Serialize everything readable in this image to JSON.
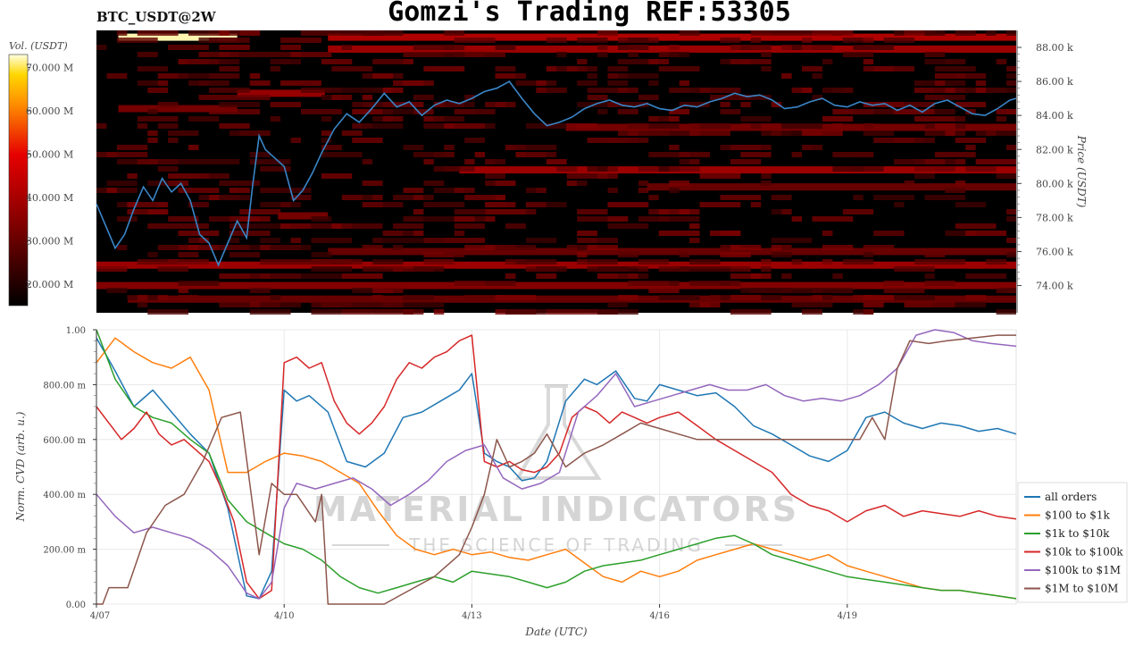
{
  "header": {
    "symbol": "BTC_USDT@2W",
    "title": "Gomzi's Trading REF:53305"
  },
  "watermark": {
    "line1": "MATERIAL INDICATORS",
    "line2": "THE SCIENCE OF TRADING"
  },
  "colors": {
    "heatmap_bg": "#000000",
    "price_line": "#3a86c8",
    "all_orders": "#1f77b4",
    "usd100_1k": "#ff7f0e",
    "usd1k_10k": "#2ca02c",
    "usd10k_100k": "#d62728",
    "usd100k_1m": "#9467bd",
    "usd1m_10m": "#8c564b"
  },
  "chart_data": [
    {
      "type": "heatmap",
      "title": "BTC_USDT@2W",
      "colorbar_label": "Vol. (USDT)",
      "colorbar_ticks": [
        "20.000 M",
        "30.000 M",
        "40.000 M",
        "50.000 M",
        "60.000 M",
        "70.000 M"
      ],
      "colorbar_range": [
        15,
        73
      ],
      "ylabel": "Price (USDT)",
      "ytick_labels": [
        "74.00 k",
        "76.00 k",
        "78.00 k",
        "80.00 k",
        "82.00 k",
        "84.00 k",
        "86.00 k",
        "88.00 k"
      ],
      "ylim": [
        72.4,
        89.0
      ],
      "xlim_days": [
        0,
        14.7
      ],
      "price_series": {
        "name": "Price",
        "x": [
          0,
          0.15,
          0.3,
          0.45,
          0.6,
          0.75,
          0.9,
          1.05,
          1.2,
          1.35,
          1.5,
          1.65,
          1.8,
          1.95,
          2.1,
          2.25,
          2.4,
          2.5,
          2.6,
          2.7,
          2.85,
          3.0,
          3.15,
          3.3,
          3.45,
          3.6,
          3.8,
          4.0,
          4.2,
          4.4,
          4.6,
          4.8,
          5.0,
          5.2,
          5.4,
          5.6,
          5.8,
          6.0,
          6.2,
          6.4,
          6.6,
          6.8,
          7.0,
          7.2,
          7.4,
          7.6,
          7.8,
          8.0,
          8.2,
          8.4,
          8.6,
          8.8,
          9.0,
          9.2,
          9.4,
          9.6,
          9.8,
          10.0,
          10.2,
          10.4,
          10.6,
          10.8,
          11.0,
          11.2,
          11.4,
          11.6,
          11.8,
          12.0,
          12.2,
          12.4,
          12.6,
          12.8,
          13.0,
          13.2,
          13.4,
          13.6,
          13.8,
          14.0,
          14.2,
          14.4,
          14.6,
          14.7
        ],
        "y": [
          78.8,
          77.5,
          76.2,
          77.0,
          78.5,
          79.8,
          79.0,
          80.3,
          79.5,
          80.0,
          79.0,
          77.0,
          76.5,
          75.2,
          76.5,
          77.8,
          76.8,
          80.0,
          82.8,
          82.0,
          81.5,
          81.0,
          79.0,
          79.6,
          80.6,
          81.8,
          83.2,
          84.1,
          83.6,
          84.4,
          85.3,
          84.5,
          84.8,
          84.0,
          84.6,
          84.9,
          84.7,
          85.0,
          85.4,
          85.6,
          86.0,
          85.0,
          84.1,
          83.4,
          83.6,
          83.9,
          84.4,
          84.7,
          84.9,
          84.6,
          84.5,
          84.7,
          84.4,
          84.3,
          84.6,
          84.5,
          84.8,
          85.0,
          85.3,
          85.1,
          85.2,
          84.9,
          84.4,
          84.5,
          84.8,
          85.0,
          84.6,
          84.5,
          84.8,
          84.6,
          84.7,
          84.3,
          84.6,
          84.2,
          84.7,
          84.9,
          84.5,
          84.1,
          84.0,
          84.4,
          84.9,
          85.0
        ]
      },
      "volume_bands": [
        {
          "price": 88.6,
          "x0": 0.35,
          "x1": 2.25,
          "vol": 72
        },
        {
          "price": 88.6,
          "x0": 3.7,
          "x1": 14.7,
          "vol": 41
        },
        {
          "price": 87.9,
          "x0": 3.7,
          "x1": 14.7,
          "vol": 38
        },
        {
          "price": 85.3,
          "x0": 2.25,
          "x1": 3.65,
          "vol": 37
        },
        {
          "price": 84.4,
          "x0": 0.35,
          "x1": 2.25,
          "vol": 32
        },
        {
          "price": 83.3,
          "x0": 7.5,
          "x1": 14.7,
          "vol": 32
        },
        {
          "price": 80.8,
          "x0": 5.8,
          "x1": 14.7,
          "vol": 38
        },
        {
          "price": 79.8,
          "x0": 8.8,
          "x1": 14.7,
          "vol": 30
        },
        {
          "price": 78.1,
          "x0": 2.9,
          "x1": 3.7,
          "vol": 32
        },
        {
          "price": 76.0,
          "x0": 3.7,
          "x1": 14.7,
          "vol": 30
        },
        {
          "price": 75.2,
          "x0": 0.0,
          "x1": 14.7,
          "vol": 38
        },
        {
          "price": 74.0,
          "x0": 0.0,
          "x1": 14.7,
          "vol": 34
        },
        {
          "price": 73.2,
          "x0": 0.5,
          "x1": 14.7,
          "vol": 30
        }
      ]
    },
    {
      "type": "line",
      "xlabel": "Date (UTC)",
      "ylabel": "Norm. CVD (arb. u.)",
      "xtick_labels": [
        "4/07",
        "4/10",
        "4/13",
        "4/16",
        "4/19"
      ],
      "xtick_days": [
        0,
        3,
        6,
        9,
        12
      ],
      "xlim_days": [
        0,
        14.7
      ],
      "ytick_labels": [
        "0.00",
        "200.00 m",
        "400.00 m",
        "600.00 m",
        "800.00 m",
        "1.00"
      ],
      "ylim": [
        0,
        1.0
      ],
      "legend_position": "bottom-right",
      "series": [
        {
          "name": "all orders",
          "x": [
            0,
            0.3,
            0.6,
            0.9,
            1.2,
            1.5,
            1.8,
            2.1,
            2.4,
            2.6,
            2.8,
            3.0,
            3.2,
            3.4,
            3.7,
            4.0,
            4.3,
            4.6,
            4.9,
            5.2,
            5.5,
            5.8,
            6.0,
            6.2,
            6.4,
            6.6,
            6.8,
            7.0,
            7.2,
            7.5,
            7.8,
            8.0,
            8.3,
            8.6,
            8.8,
            9.0,
            9.3,
            9.6,
            9.9,
            10.2,
            10.5,
            10.8,
            11.1,
            11.4,
            11.7,
            12.0,
            12.3,
            12.6,
            12.9,
            13.2,
            13.5,
            13.8,
            14.1,
            14.4,
            14.7
          ],
          "y": [
            0.97,
            0.85,
            0.72,
            0.78,
            0.7,
            0.62,
            0.55,
            0.35,
            0.03,
            0.02,
            0.12,
            0.78,
            0.74,
            0.76,
            0.7,
            0.52,
            0.5,
            0.55,
            0.68,
            0.7,
            0.74,
            0.78,
            0.84,
            0.55,
            0.52,
            0.5,
            0.45,
            0.46,
            0.52,
            0.74,
            0.82,
            0.8,
            0.85,
            0.75,
            0.74,
            0.8,
            0.78,
            0.76,
            0.77,
            0.72,
            0.65,
            0.62,
            0.58,
            0.54,
            0.52,
            0.56,
            0.68,
            0.7,
            0.66,
            0.64,
            0.66,
            0.65,
            0.63,
            0.64,
            0.62
          ]
        },
        {
          "name": "$100 to $1k",
          "x": [
            0,
            0.3,
            0.6,
            0.9,
            1.2,
            1.5,
            1.8,
            2.1,
            2.4,
            2.7,
            3.0,
            3.3,
            3.6,
            3.9,
            4.2,
            4.5,
            4.8,
            5.1,
            5.4,
            5.7,
            6.0,
            6.3,
            6.6,
            6.9,
            7.2,
            7.5,
            7.8,
            8.1,
            8.4,
            8.7,
            9.0,
            9.3,
            9.6,
            9.9,
            10.2,
            10.5,
            10.8,
            11.1,
            11.4,
            11.7,
            12.0,
            12.3,
            12.6,
            12.9,
            13.2,
            13.5,
            13.8,
            14.1,
            14.4,
            14.7
          ],
          "y": [
            0.88,
            0.97,
            0.92,
            0.88,
            0.86,
            0.9,
            0.78,
            0.48,
            0.48,
            0.52,
            0.55,
            0.54,
            0.52,
            0.48,
            0.44,
            0.34,
            0.25,
            0.2,
            0.18,
            0.2,
            0.18,
            0.19,
            0.17,
            0.16,
            0.18,
            0.2,
            0.15,
            0.1,
            0.08,
            0.12,
            0.1,
            0.12,
            0.16,
            0.18,
            0.2,
            0.22,
            0.2,
            0.18,
            0.16,
            0.18,
            0.14,
            0.12,
            0.1,
            0.08,
            0.06,
            0.05,
            0.05,
            0.04,
            0.03,
            0.02
          ]
        },
        {
          "name": "$1k to $10k",
          "x": [
            0,
            0.3,
            0.6,
            0.9,
            1.2,
            1.5,
            1.8,
            2.1,
            2.4,
            2.7,
            3.0,
            3.3,
            3.6,
            3.9,
            4.2,
            4.5,
            4.8,
            5.1,
            5.4,
            5.7,
            6.0,
            6.3,
            6.6,
            6.9,
            7.2,
            7.5,
            7.8,
            8.1,
            8.4,
            8.7,
            9.0,
            9.3,
            9.6,
            9.9,
            10.2,
            10.5,
            10.8,
            11.1,
            11.4,
            11.7,
            12.0,
            12.3,
            12.6,
            12.9,
            13.2,
            13.5,
            13.8,
            14.1,
            14.4,
            14.7
          ],
          "y": [
            1.0,
            0.82,
            0.72,
            0.68,
            0.66,
            0.6,
            0.55,
            0.38,
            0.3,
            0.26,
            0.22,
            0.2,
            0.16,
            0.1,
            0.06,
            0.04,
            0.06,
            0.08,
            0.1,
            0.08,
            0.12,
            0.11,
            0.1,
            0.08,
            0.06,
            0.08,
            0.12,
            0.14,
            0.15,
            0.16,
            0.18,
            0.2,
            0.22,
            0.24,
            0.25,
            0.22,
            0.18,
            0.16,
            0.14,
            0.12,
            0.1,
            0.09,
            0.08,
            0.07,
            0.06,
            0.05,
            0.05,
            0.04,
            0.03,
            0.02
          ]
        },
        {
          "name": "$10k to $100k",
          "x": [
            0,
            0.2,
            0.4,
            0.6,
            0.8,
            1.0,
            1.2,
            1.4,
            1.6,
            1.8,
            2.0,
            2.2,
            2.4,
            2.6,
            2.8,
            3.0,
            3.2,
            3.4,
            3.6,
            3.8,
            4.0,
            4.2,
            4.4,
            4.6,
            4.8,
            5.0,
            5.2,
            5.4,
            5.6,
            5.8,
            6.0,
            6.2,
            6.4,
            6.6,
            6.8,
            7.0,
            7.2,
            7.4,
            7.6,
            7.8,
            8.0,
            8.2,
            8.4,
            8.6,
            8.8,
            9.0,
            9.3,
            9.6,
            9.9,
            10.2,
            10.5,
            10.8,
            11.1,
            11.4,
            11.7,
            12.0,
            12.3,
            12.6,
            12.9,
            13.2,
            13.5,
            13.8,
            14.1,
            14.4,
            14.7
          ],
          "y": [
            0.72,
            0.66,
            0.6,
            0.64,
            0.7,
            0.62,
            0.58,
            0.6,
            0.56,
            0.52,
            0.42,
            0.3,
            0.08,
            0.02,
            0.05,
            0.88,
            0.9,
            0.86,
            0.88,
            0.74,
            0.66,
            0.62,
            0.66,
            0.72,
            0.82,
            0.88,
            0.86,
            0.9,
            0.92,
            0.96,
            0.98,
            0.52,
            0.5,
            0.52,
            0.49,
            0.48,
            0.5,
            0.55,
            0.68,
            0.72,
            0.7,
            0.66,
            0.7,
            0.68,
            0.66,
            0.68,
            0.7,
            0.65,
            0.6,
            0.56,
            0.52,
            0.48,
            0.4,
            0.36,
            0.34,
            0.3,
            0.34,
            0.36,
            0.32,
            0.34,
            0.33,
            0.32,
            0.34,
            0.32,
            0.31
          ]
        },
        {
          "name": "$100k to $1M",
          "x": [
            0,
            0.3,
            0.6,
            0.9,
            1.2,
            1.5,
            1.8,
            2.1,
            2.4,
            2.6,
            2.8,
            3.0,
            3.2,
            3.5,
            3.8,
            4.1,
            4.4,
            4.7,
            5.0,
            5.3,
            5.6,
            5.9,
            6.2,
            6.5,
            6.8,
            7.1,
            7.4,
            7.7,
            8.0,
            8.3,
            8.6,
            8.9,
            9.2,
            9.5,
            9.8,
            10.1,
            10.4,
            10.7,
            11.0,
            11.3,
            11.6,
            11.9,
            12.2,
            12.5,
            12.8,
            13.1,
            13.4,
            13.7,
            14.0,
            14.3,
            14.7
          ],
          "y": [
            0.4,
            0.32,
            0.26,
            0.28,
            0.26,
            0.24,
            0.2,
            0.14,
            0.04,
            0.02,
            0.08,
            0.35,
            0.44,
            0.42,
            0.44,
            0.46,
            0.42,
            0.36,
            0.4,
            0.45,
            0.52,
            0.56,
            0.58,
            0.46,
            0.42,
            0.44,
            0.48,
            0.7,
            0.76,
            0.84,
            0.72,
            0.74,
            0.76,
            0.78,
            0.8,
            0.78,
            0.78,
            0.8,
            0.76,
            0.74,
            0.75,
            0.74,
            0.76,
            0.8,
            0.86,
            0.98,
            1.0,
            0.99,
            0.96,
            0.95,
            0.94
          ]
        },
        {
          "name": "$1M to $10M",
          "x": [
            0,
            0.1,
            0.2,
            0.5,
            0.8,
            1.1,
            1.4,
            1.7,
            2.0,
            2.3,
            2.6,
            2.8,
            3.0,
            3.2,
            3.5,
            3.6,
            3.7,
            4.0,
            4.3,
            4.6,
            5.0,
            5.4,
            5.8,
            6.0,
            6.2,
            6.4,
            6.6,
            6.8,
            7.0,
            7.2,
            7.5,
            7.8,
            8.1,
            8.4,
            8.7,
            9.0,
            9.3,
            9.6,
            9.9,
            10.2,
            10.5,
            10.8,
            11.1,
            11.4,
            11.7,
            12.0,
            12.2,
            12.4,
            12.6,
            12.8,
            13.0,
            13.3,
            13.6,
            14.0,
            14.4,
            14.7
          ],
          "y": [
            0.0,
            0.0,
            0.06,
            0.06,
            0.26,
            0.36,
            0.4,
            0.52,
            0.68,
            0.7,
            0.18,
            0.44,
            0.4,
            0.4,
            0.3,
            0.4,
            0.0,
            0.0,
            0.0,
            0.0,
            0.05,
            0.1,
            0.18,
            0.28,
            0.4,
            0.6,
            0.5,
            0.52,
            0.55,
            0.62,
            0.5,
            0.55,
            0.58,
            0.62,
            0.66,
            0.64,
            0.62,
            0.6,
            0.6,
            0.6,
            0.6,
            0.6,
            0.6,
            0.6,
            0.6,
            0.6,
            0.6,
            0.68,
            0.6,
            0.86,
            0.96,
            0.95,
            0.96,
            0.97,
            0.98,
            0.98
          ]
        }
      ]
    }
  ]
}
